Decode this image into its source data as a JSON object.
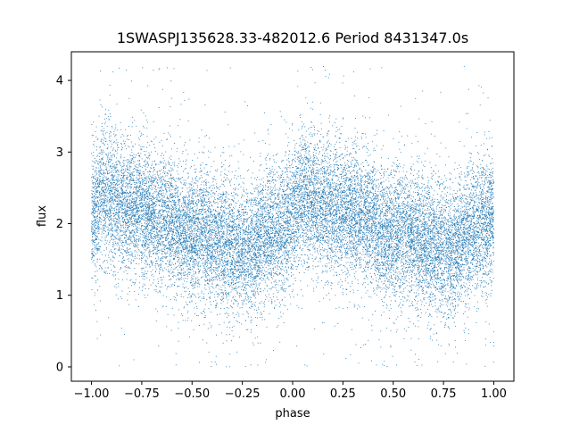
{
  "chart_data": {
    "type": "scatter",
    "title": "1SWASPJ135628.33-482012.6 Period 8431347.0s",
    "xlabel": "phase",
    "ylabel": "flux",
    "xlim": [
      -1.1,
      1.1
    ],
    "ylim": [
      -0.2,
      4.4
    ],
    "xticks": [
      -1.0,
      -0.75,
      -0.5,
      -0.25,
      0.0,
      0.25,
      0.5,
      0.75,
      1.0
    ],
    "xtick_labels": [
      "−1.00",
      "−0.75",
      "−0.50",
      "−0.25",
      "0.00",
      "0.25",
      "0.50",
      "0.75",
      "1.00"
    ],
    "yticks": [
      0,
      1,
      2,
      3,
      4
    ],
    "ytick_labels": [
      "0",
      "1",
      "2",
      "3",
      "4"
    ],
    "grid": false,
    "legend": "none",
    "color": "#1f77b4",
    "series": [
      {
        "note_profile": "folded light curve, repeated over two cycles; approximate mean flux vs phase",
        "x": [
          -1.0,
          -0.95,
          -0.9,
          -0.85,
          -0.8,
          -0.75,
          -0.7,
          -0.65,
          -0.6,
          -0.55,
          -0.5,
          -0.45,
          -0.4,
          -0.35,
          -0.3,
          -0.25,
          -0.2,
          -0.15,
          -0.1,
          -0.05,
          0.0,
          0.05,
          0.1,
          0.15,
          0.2,
          0.25,
          0.3,
          0.35,
          0.4,
          0.45,
          0.5,
          0.55,
          0.6,
          0.65,
          0.7,
          0.75,
          0.8,
          0.85,
          0.9,
          0.95,
          1.0
        ],
        "y": [
          2.0,
          2.45,
          2.35,
          2.25,
          2.2,
          2.2,
          2.15,
          2.1,
          2.05,
          1.85,
          1.85,
          1.9,
          1.75,
          1.75,
          1.7,
          1.65,
          1.6,
          1.85,
          1.9,
          1.95,
          2.1,
          2.45,
          2.3,
          2.25,
          2.2,
          2.2,
          2.15,
          2.1,
          2.05,
          1.85,
          1.85,
          1.9,
          1.75,
          1.75,
          1.7,
          1.65,
          1.6,
          1.85,
          1.9,
          1.95,
          2.1
        ]
      }
    ],
    "scatter_stats": {
      "points": 20000,
      "spread_y": 0.45,
      "min_y": 0.0,
      "max_y": 4.2
    }
  }
}
